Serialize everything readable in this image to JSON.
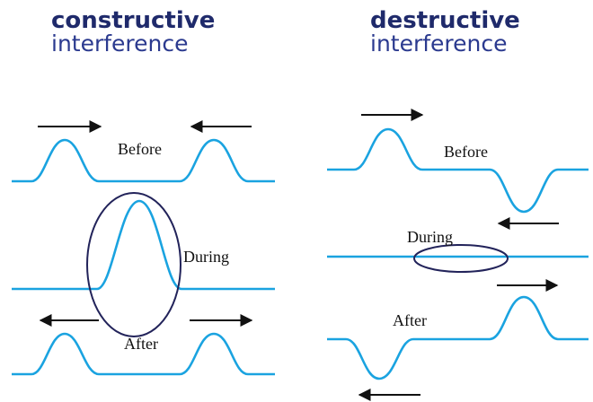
{
  "colors": {
    "wave": "#1aa3e0",
    "title_dark": "#1f2a6b",
    "ellipse": "#22235a"
  },
  "constructive": {
    "title_bold": "constructive",
    "title_normal": "interference",
    "labels": {
      "before": "Before",
      "during": "During",
      "after": "After"
    }
  },
  "destructive": {
    "title_bold": "destructive",
    "title_normal": "interference",
    "labels": {
      "before": "Before",
      "during": "During",
      "after": "After"
    }
  }
}
